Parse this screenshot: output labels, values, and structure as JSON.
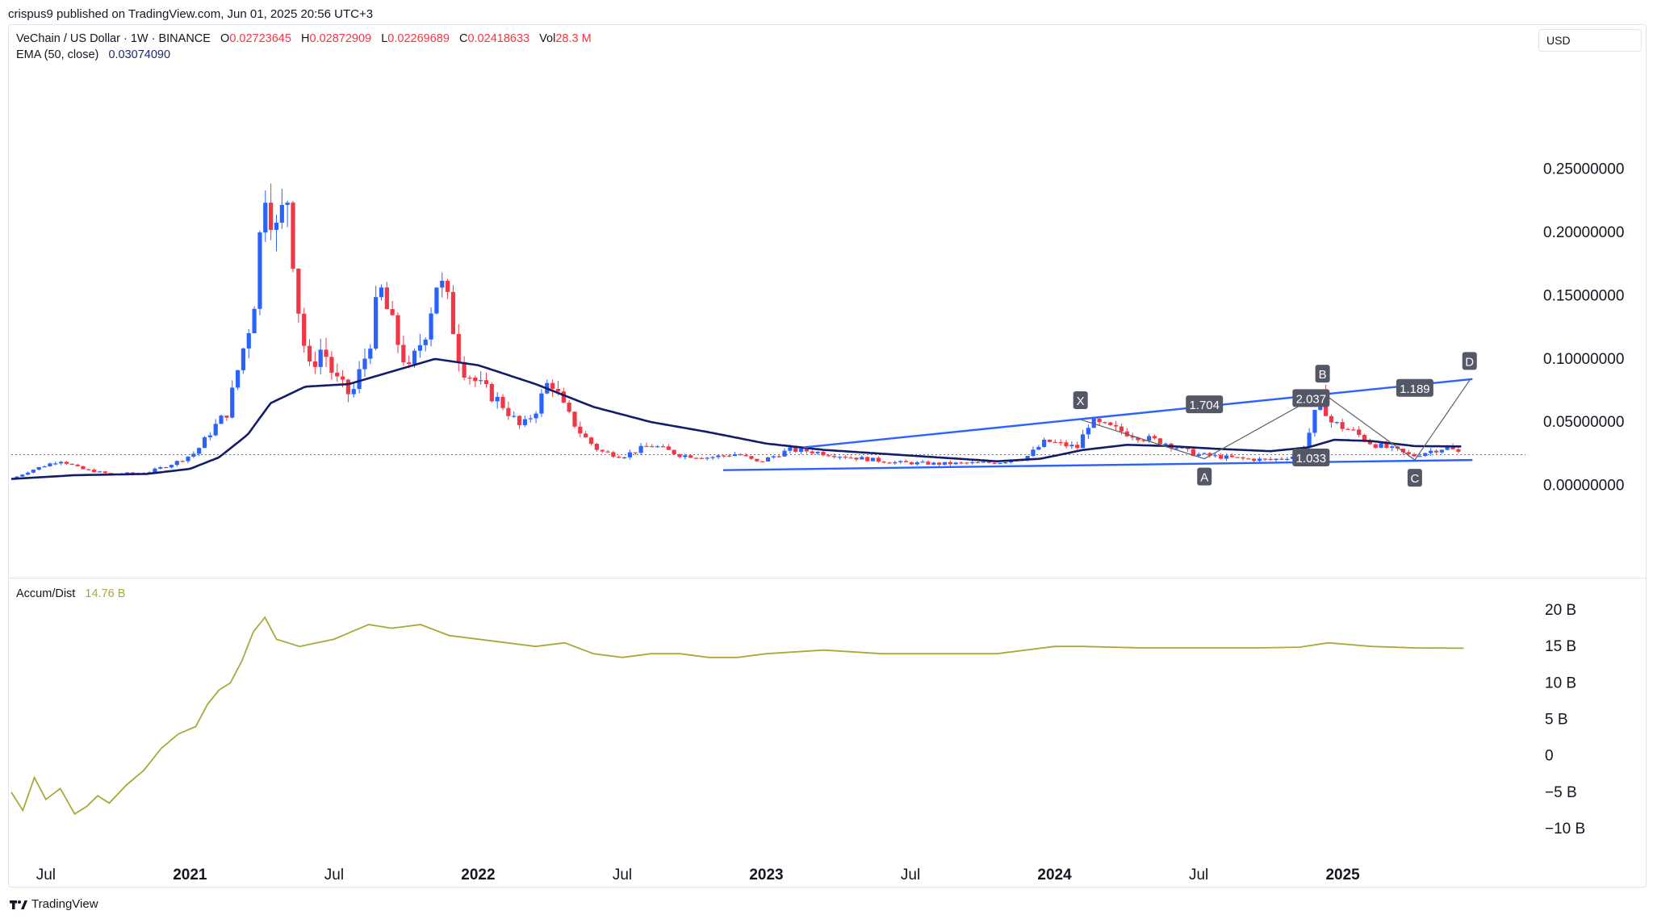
{
  "published": "crispus9 published on TradingView.com, Jun 01, 2025 20:56 UTC+3",
  "legend": {
    "symbol": "VeChain / US Dollar · 1W · BINANCE",
    "o_key": "O",
    "o": "0.02723645",
    "h_key": "H",
    "h": "0.02872909",
    "l_key": "L",
    "l": "0.02269689",
    "c_key": "C",
    "c": "0.02418633",
    "vol_key": "Vol",
    "vol": "28.3 M",
    "ema_label": "EMA (50, close)",
    "ema": "0.03074090",
    "ad_label": "Accum/Dist",
    "ad": "14.76 B"
  },
  "currency": "USD",
  "brand": "TradingView",
  "colors": {
    "up": "#2962ff",
    "down": "#f23645",
    "ema": "#131c6b",
    "trend": "#2962ff",
    "ad": "#a9a838",
    "last_price": "#f23645"
  },
  "chart_data": [
    {
      "type": "candlestick",
      "title": "VeChain / US Dollar · 1W · BINANCE",
      "price_scale": "right",
      "ylim": [
        -0.045,
        0.32
      ],
      "yticks": [
        "0.25000000",
        "0.20000000",
        "0.15000000",
        "0.10000000",
        "0.05000000",
        "0.00000000"
      ],
      "ytick_values": [
        0.25,
        0.2,
        0.15,
        0.1,
        0.05,
        0.0
      ],
      "xlim": [
        2020.38,
        2025.55
      ],
      "xticks": [
        {
          "label": "Jul",
          "t": 2020.5,
          "bold": false
        },
        {
          "label": "2021",
          "t": 2021.0,
          "bold": true
        },
        {
          "label": "Jul",
          "t": 2021.5,
          "bold": false
        },
        {
          "label": "2022",
          "t": 2022.0,
          "bold": true
        },
        {
          "label": "Jul",
          "t": 2022.5,
          "bold": false
        },
        {
          "label": "2023",
          "t": 2023.0,
          "bold": true
        },
        {
          "label": "Jul",
          "t": 2023.5,
          "bold": false
        },
        {
          "label": "2024",
          "t": 2024.0,
          "bold": true
        },
        {
          "label": "Jul",
          "t": 2024.5,
          "bold": false
        },
        {
          "label": "2025",
          "t": 2025.0,
          "bold": true
        }
      ],
      "price_keys": [
        [
          2020.38,
          0.005
        ],
        [
          2020.45,
          0.012
        ],
        [
          2020.55,
          0.02
        ],
        [
          2020.62,
          0.013
        ],
        [
          2020.72,
          0.009
        ],
        [
          2020.85,
          0.01
        ],
        [
          2020.95,
          0.018
        ],
        [
          2021.02,
          0.026
        ],
        [
          2021.08,
          0.045
        ],
        [
          2021.13,
          0.058
        ],
        [
          2021.17,
          0.095
        ],
        [
          2021.22,
          0.14
        ],
        [
          2021.26,
          0.24
        ],
        [
          2021.3,
          0.2
        ],
        [
          2021.34,
          0.23
        ],
        [
          2021.37,
          0.15
        ],
        [
          2021.41,
          0.09
        ],
        [
          2021.46,
          0.11
        ],
        [
          2021.5,
          0.085
        ],
        [
          2021.56,
          0.07
        ],
        [
          2021.62,
          0.11
        ],
        [
          2021.66,
          0.155
        ],
        [
          2021.71,
          0.12
        ],
        [
          2021.76,
          0.09
        ],
        [
          2021.82,
          0.125
        ],
        [
          2021.86,
          0.165
        ],
        [
          2021.9,
          0.14
        ],
        [
          2021.94,
          0.095
        ],
        [
          2022.0,
          0.08
        ],
        [
          2022.08,
          0.065
        ],
        [
          2022.15,
          0.045
        ],
        [
          2022.2,
          0.06
        ],
        [
          2022.25,
          0.085
        ],
        [
          2022.3,
          0.06
        ],
        [
          2022.36,
          0.04
        ],
        [
          2022.42,
          0.027
        ],
        [
          2022.5,
          0.023
        ],
        [
          2022.6,
          0.032
        ],
        [
          2022.7,
          0.024
        ],
        [
          2022.8,
          0.022
        ],
        [
          2022.9,
          0.025
        ],
        [
          2022.97,
          0.018
        ],
        [
          2023.08,
          0.028
        ],
        [
          2023.15,
          0.027
        ],
        [
          2023.3,
          0.022
        ],
        [
          2023.45,
          0.018
        ],
        [
          2023.6,
          0.017
        ],
        [
          2023.8,
          0.018
        ],
        [
          2023.9,
          0.022
        ],
        [
          2023.97,
          0.035
        ],
        [
          2024.03,
          0.032
        ],
        [
          2024.08,
          0.03
        ],
        [
          2024.12,
          0.05
        ],
        [
          2024.2,
          0.045
        ],
        [
          2024.3,
          0.038
        ],
        [
          2024.38,
          0.034
        ],
        [
          2024.48,
          0.025
        ],
        [
          2024.55,
          0.023
        ],
        [
          2024.65,
          0.021
        ],
        [
          2024.75,
          0.02
        ],
        [
          2024.85,
          0.024
        ],
        [
          2024.89,
          0.045
        ],
        [
          2024.92,
          0.07
        ],
        [
          2024.96,
          0.05
        ],
        [
          2025.04,
          0.042
        ],
        [
          2025.1,
          0.033
        ],
        [
          2025.18,
          0.028
        ],
        [
          2025.24,
          0.023
        ],
        [
          2025.3,
          0.027
        ],
        [
          2025.36,
          0.03
        ],
        [
          2025.42,
          0.0242
        ]
      ],
      "ema_keys": [
        [
          2020.38,
          0.005
        ],
        [
          2020.6,
          0.008
        ],
        [
          2020.85,
          0.009
        ],
        [
          2021.0,
          0.013
        ],
        [
          2021.1,
          0.022
        ],
        [
          2021.2,
          0.04
        ],
        [
          2021.28,
          0.065
        ],
        [
          2021.4,
          0.078
        ],
        [
          2021.55,
          0.08
        ],
        [
          2021.7,
          0.09
        ],
        [
          2021.85,
          0.1
        ],
        [
          2022.0,
          0.095
        ],
        [
          2022.2,
          0.08
        ],
        [
          2022.4,
          0.062
        ],
        [
          2022.6,
          0.05
        ],
        [
          2022.8,
          0.042
        ],
        [
          2023.0,
          0.033
        ],
        [
          2023.2,
          0.028
        ],
        [
          2023.4,
          0.025
        ],
        [
          2023.6,
          0.022
        ],
        [
          2023.8,
          0.019
        ],
        [
          2023.95,
          0.021
        ],
        [
          2024.1,
          0.028
        ],
        [
          2024.25,
          0.032
        ],
        [
          2024.4,
          0.031
        ],
        [
          2024.55,
          0.029
        ],
        [
          2024.75,
          0.027
        ],
        [
          2024.88,
          0.03
        ],
        [
          2024.97,
          0.036
        ],
        [
          2025.1,
          0.035
        ],
        [
          2025.25,
          0.031
        ],
        [
          2025.42,
          0.0307
        ]
      ],
      "trend_lines": [
        {
          "from": [
            2023.13,
            0.03
          ],
          "to": [
            2025.45,
            0.084
          ]
        },
        {
          "from": [
            2022.85,
            0.012
          ],
          "to": [
            2025.45,
            0.02
          ]
        }
      ],
      "harmonic": {
        "points": [
          {
            "label": "X",
            "t": 2024.09,
            "price": 0.052,
            "pos": "above"
          },
          {
            "label": "A",
            "t": 2024.52,
            "price": 0.021,
            "pos": "below"
          },
          {
            "label": "B",
            "t": 2024.93,
            "price": 0.073,
            "pos": "above"
          },
          {
            "label": "C",
            "t": 2025.25,
            "price": 0.02,
            "pos": "below"
          },
          {
            "label": "D",
            "t": 2025.44,
            "price": 0.083,
            "pos": "above"
          }
        ],
        "ratios": [
          {
            "text": "1.704",
            "t": 2024.52,
            "price": 0.064
          },
          {
            "text": "2.037",
            "t": 2024.89,
            "price": 0.069
          },
          {
            "text": "1.033",
            "t": 2024.89,
            "price": 0.022
          },
          {
            "text": "1.189",
            "t": 2025.25,
            "price": 0.077
          }
        ]
      },
      "last_price": 0.0242
    },
    {
      "type": "line",
      "title": "Accum/Dist",
      "ylim": [
        -12,
        22
      ],
      "yticks": [
        "20 B",
        "15 B",
        "10 B",
        "5 B",
        "0",
        "−5 B",
        "−10 B"
      ],
      "ytick_values": [
        20,
        15,
        10,
        5,
        0,
        -5,
        -10
      ],
      "x": [
        2020.38,
        2020.42,
        2020.46,
        2020.5,
        2020.55,
        2020.6,
        2020.64,
        2020.68,
        2020.72,
        2020.78,
        2020.84,
        2020.9,
        2020.96,
        2021.02,
        2021.06,
        2021.1,
        2021.14,
        2021.18,
        2021.22,
        2021.26,
        2021.3,
        2021.34,
        2021.38,
        2021.44,
        2021.5,
        2021.56,
        2021.62,
        2021.7,
        2021.8,
        2021.9,
        2022.0,
        2022.1,
        2022.2,
        2022.3,
        2022.4,
        2022.5,
        2022.6,
        2022.7,
        2022.8,
        2022.9,
        2023.0,
        2023.2,
        2023.4,
        2023.6,
        2023.8,
        2024.0,
        2024.1,
        2024.3,
        2024.5,
        2024.7,
        2024.85,
        2024.95,
        2025.1,
        2025.25,
        2025.42
      ],
      "values": [
        -5,
        -7.5,
        -3,
        -6,
        -4.5,
        -8,
        -7,
        -5.5,
        -6.5,
        -4,
        -2,
        1,
        3,
        4,
        7,
        9,
        10,
        13,
        17,
        19,
        16,
        15.5,
        15,
        15.5,
        16,
        17,
        18,
        17.5,
        18,
        16.5,
        16,
        15.5,
        15,
        15.5,
        14,
        13.5,
        14,
        14,
        13.5,
        13.5,
        14,
        14.5,
        14,
        14,
        14,
        15,
        15,
        14.8,
        14.8,
        14.8,
        14.9,
        15.5,
        15,
        14.8,
        14.76
      ]
    }
  ]
}
